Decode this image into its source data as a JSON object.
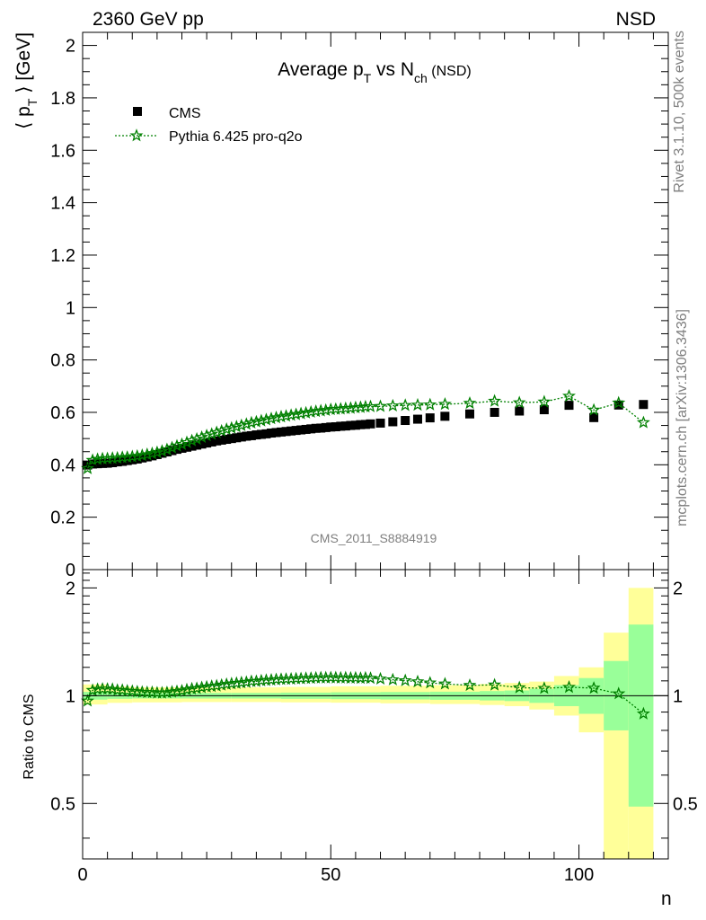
{
  "header": {
    "left": "2360 GeV pp",
    "right": "NSD"
  },
  "side_labels": {
    "rivet": "Rivet 3.1.10,  500k events",
    "mcplots": "mcplots.cern.ch [arXiv:1306.3436]"
  },
  "watermark": "CMS_2011_S8884919",
  "main_title": {
    "pre": "Average p",
    "sub1": "T",
    "mid": " vs N",
    "sub2": "ch",
    "post": " (NSD)"
  },
  "ylabel": {
    "left": "⟨ p",
    "sub": "T",
    "right": " ⟩ [GeV]"
  },
  "ratio_ylabel": "Ratio to CMS",
  "xlabel": "n",
  "legend": {
    "cms": "CMS",
    "pythia": "Pythia 6.425 pro-q2o"
  },
  "colors": {
    "cms": "#000000",
    "pythia": "#008000",
    "band_stat": "#99ff99",
    "band_total": "#ffff99"
  },
  "chart_data": {
    "type": "scatter",
    "title": "Average pT vs Nch (NSD)",
    "xlabel": "n",
    "ylabel": "⟨ pT ⟩ [GeV]",
    "xlim": [
      0,
      118
    ],
    "ylim": [
      0,
      2.05
    ],
    "ratio_ylim": [
      0.35,
      2.25
    ],
    "main_yticks": [
      "0",
      "0.2",
      "0.4",
      "0.6",
      "0.8",
      "1",
      "1.2",
      "1.4",
      "1.6",
      "1.8",
      "2"
    ],
    "main_ytick_values": [
      0,
      0.2,
      0.4,
      0.6,
      0.8,
      1.0,
      1.2,
      1.4,
      1.6,
      1.8,
      2.0
    ],
    "ratio_yticks": [
      "0.5",
      "1",
      "2"
    ],
    "ratio_ytick_values": [
      0.5,
      1,
      2
    ],
    "xticks": [
      "0",
      "50",
      "100"
    ],
    "xtick_values": [
      0,
      50,
      100
    ],
    "series": [
      {
        "name": "CMS",
        "x": [
          1,
          2,
          3,
          4,
          5,
          6,
          7,
          8,
          9,
          10,
          11,
          12,
          13,
          14,
          15,
          16,
          17,
          18,
          19,
          20,
          21,
          22,
          23,
          24,
          25,
          26,
          27,
          28,
          29,
          30,
          31,
          32,
          33,
          34,
          35,
          36,
          37,
          38,
          39,
          40,
          41,
          42,
          43,
          44,
          45,
          46,
          47,
          48,
          49,
          50,
          51,
          52,
          53,
          54,
          55,
          56,
          57,
          58,
          60,
          62.5,
          65,
          67.5,
          70,
          73,
          78,
          83,
          88,
          93,
          98,
          103,
          108,
          113
        ],
        "y": [
          0.399,
          0.403,
          0.404,
          0.405,
          0.406,
          0.408,
          0.411,
          0.413,
          0.416,
          0.419,
          0.422,
          0.426,
          0.43,
          0.434,
          0.439,
          0.444,
          0.449,
          0.454,
          0.459,
          0.463,
          0.467,
          0.471,
          0.475,
          0.479,
          0.483,
          0.487,
          0.491,
          0.494,
          0.497,
          0.5,
          0.503,
          0.506,
          0.509,
          0.511,
          0.514,
          0.516,
          0.518,
          0.521,
          0.523,
          0.525,
          0.527,
          0.529,
          0.531,
          0.533,
          0.535,
          0.537,
          0.539,
          0.54,
          0.542,
          0.544,
          0.545,
          0.547,
          0.548,
          0.55,
          0.551,
          0.553,
          0.554,
          0.556,
          0.559,
          0.564,
          0.569,
          0.574,
          0.579,
          0.585,
          0.594,
          0.6,
          0.605,
          0.61,
          0.627,
          0.58,
          0.628,
          0.63
        ]
      },
      {
        "name": "Pythia 6.425 pro-q2o",
        "x": [
          1,
          2,
          3,
          4,
          5,
          6,
          7,
          8,
          9,
          10,
          11,
          12,
          13,
          14,
          15,
          16,
          17,
          18,
          19,
          20,
          21,
          22,
          23,
          24,
          25,
          26,
          27,
          28,
          29,
          30,
          31,
          32,
          33,
          34,
          35,
          36,
          37,
          38,
          39,
          40,
          41,
          42,
          43,
          44,
          45,
          46,
          47,
          48,
          49,
          50,
          51,
          52,
          53,
          54,
          55,
          56,
          57,
          58,
          60,
          62.5,
          65,
          67.5,
          70,
          73,
          78,
          83,
          88,
          93,
          98,
          103,
          108,
          113
        ],
        "y": [
          0.386,
          0.417,
          0.421,
          0.423,
          0.424,
          0.425,
          0.426,
          0.428,
          0.429,
          0.431,
          0.433,
          0.436,
          0.439,
          0.443,
          0.447,
          0.452,
          0.458,
          0.465,
          0.472,
          0.478,
          0.485,
          0.492,
          0.498,
          0.505,
          0.511,
          0.517,
          0.523,
          0.529,
          0.535,
          0.54,
          0.545,
          0.55,
          0.555,
          0.56,
          0.564,
          0.568,
          0.572,
          0.576,
          0.58,
          0.583,
          0.586,
          0.589,
          0.592,
          0.595,
          0.598,
          0.601,
          0.604,
          0.606,
          0.608,
          0.611,
          0.612,
          0.613,
          0.615,
          0.616,
          0.618,
          0.619,
          0.621,
          0.622,
          0.623,
          0.625,
          0.627,
          0.628,
          0.629,
          0.631,
          0.635,
          0.643,
          0.637,
          0.64,
          0.662,
          0.609,
          0.636,
          0.561
        ]
      }
    ],
    "ratio": {
      "x": [
        1,
        2,
        3,
        4,
        5,
        6,
        7,
        8,
        9,
        10,
        11,
        12,
        13,
        14,
        15,
        16,
        17,
        18,
        19,
        20,
        21,
        22,
        23,
        24,
        25,
        26,
        27,
        28,
        29,
        30,
        31,
        32,
        33,
        34,
        35,
        36,
        37,
        38,
        39,
        40,
        41,
        42,
        43,
        44,
        45,
        46,
        47,
        48,
        49,
        50,
        51,
        52,
        53,
        54,
        55,
        56,
        57,
        58,
        60,
        62.5,
        65,
        67.5,
        70,
        73,
        78,
        83,
        88,
        93,
        98,
        103,
        108,
        113
      ],
      "y": [
        0.967,
        1.035,
        1.042,
        1.044,
        1.044,
        1.042,
        1.036,
        1.036,
        1.031,
        1.029,
        1.026,
        1.023,
        1.021,
        1.021,
        1.018,
        1.018,
        1.02,
        1.024,
        1.028,
        1.032,
        1.039,
        1.045,
        1.048,
        1.054,
        1.058,
        1.062,
        1.065,
        1.071,
        1.076,
        1.08,
        1.083,
        1.087,
        1.09,
        1.096,
        1.097,
        1.101,
        1.104,
        1.106,
        1.109,
        1.111,
        1.112,
        1.113,
        1.115,
        1.116,
        1.118,
        1.119,
        1.121,
        1.122,
        1.122,
        1.123,
        1.122,
        1.121,
        1.122,
        1.12,
        1.121,
        1.119,
        1.121,
        1.119,
        1.114,
        1.108,
        1.102,
        1.094,
        1.086,
        1.079,
        1.069,
        1.072,
        1.053,
        1.049,
        1.056,
        1.05,
        1.013,
        0.89
      ],
      "band_edges": [
        0,
        5,
        10,
        20,
        30,
        40,
        50,
        60,
        70,
        80,
        85,
        90,
        95,
        100,
        105,
        110,
        115
      ],
      "band_stat_low": [
        0.975,
        0.98,
        0.982,
        0.982,
        0.982,
        0.98,
        0.978,
        0.976,
        0.974,
        0.97,
        0.966,
        0.955,
        0.935,
        0.89,
        0.8,
        0.49
      ],
      "band_stat_high": [
        1.025,
        1.02,
        1.018,
        1.018,
        1.018,
        1.02,
        1.022,
        1.024,
        1.026,
        1.03,
        1.034,
        1.045,
        1.07,
        1.12,
        1.25,
        1.58
      ],
      "band_total_low": [
        0.945,
        0.955,
        0.958,
        0.96,
        0.96,
        0.958,
        0.956,
        0.952,
        0.948,
        0.942,
        0.935,
        0.915,
        0.88,
        0.79,
        0.35,
        0.35
      ],
      "band_total_high": [
        1.075,
        1.06,
        1.055,
        1.055,
        1.055,
        1.058,
        1.062,
        1.066,
        1.07,
        1.078,
        1.085,
        1.095,
        1.135,
        1.2,
        1.5,
        2.0
      ]
    }
  }
}
